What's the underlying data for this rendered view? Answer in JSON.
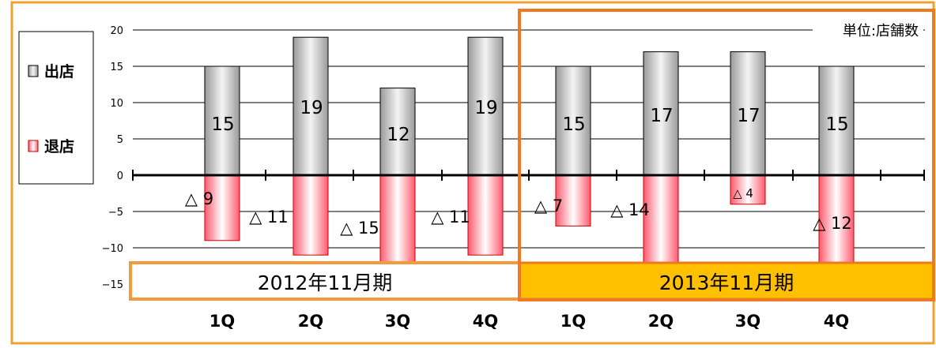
{
  "unit_label": "単位:店舗数",
  "periods": [
    {
      "label": "2012年11月期",
      "style": "outline"
    },
    {
      "label": "2013年11月期",
      "style": "filled"
    }
  ],
  "colors": {
    "frame": "#f0a030",
    "period_outline": "#f39a3c",
    "period_fill": "#ffc000",
    "period_2013_border": "#f07820",
    "open_bar_dark": "#9a9a9a",
    "open_bar_light": "#f4f4f4",
    "close_bar_dark": "#ff5a6e",
    "close_bar_light": "#ffffff",
    "close_bar_border": "#cc0000",
    "grid": "#000000"
  },
  "chart_data": {
    "type": "bar",
    "categories": [
      "1Q",
      "2Q",
      "3Q",
      "4Q",
      "1Q",
      "2Q",
      "3Q",
      "4Q"
    ],
    "series": [
      {
        "name": "出店",
        "values": [
          15,
          19,
          12,
          19,
          15,
          17,
          17,
          15
        ]
      },
      {
        "name": "退店",
        "values": [
          -9,
          -11,
          -15,
          -11,
          -7,
          -14,
          -4,
          -12
        ]
      }
    ],
    "open_labels": [
      "15",
      "19",
      "12",
      "19",
      "15",
      "17",
      "17",
      "15"
    ],
    "close_labels": [
      "△ 9",
      "△ 11",
      "△ 15",
      "△ 11",
      "△ 7",
      "△ 14",
      "△ 4",
      "△ 12"
    ],
    "yticks": [
      20,
      15,
      10,
      5,
      0,
      -5,
      -10,
      -15
    ],
    "ytick_labels": [
      "20",
      "15",
      "10",
      "5",
      "0",
      "−5",
      "−10",
      "−15"
    ],
    "ylim": [
      -15,
      20
    ],
    "grid": true,
    "legend_position": "left"
  }
}
